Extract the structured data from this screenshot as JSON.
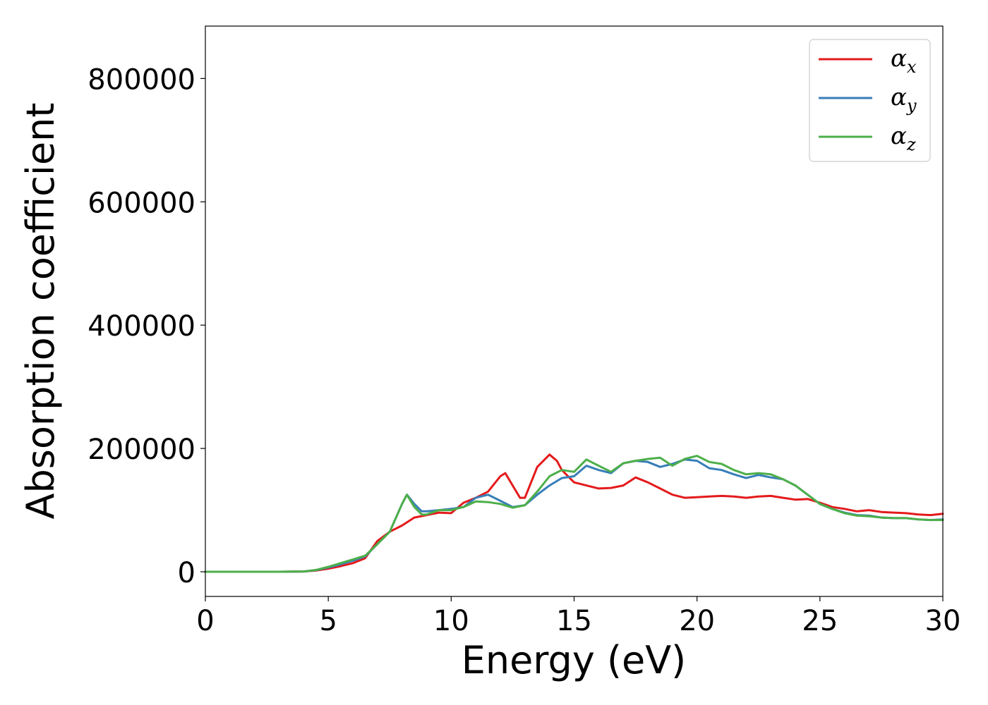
{
  "chart_data": {
    "type": "line",
    "title": "",
    "xlabel": "Energy (eV)",
    "ylabel": "Absorption coefficient",
    "xlim": [
      0,
      30
    ],
    "ylim": [
      -40000,
      885000
    ],
    "xticks": [
      0,
      5,
      10,
      15,
      20,
      25,
      30
    ],
    "xtick_labels": [
      "0",
      "5",
      "10",
      "15",
      "20",
      "25",
      "30"
    ],
    "yticks": [
      0,
      200000,
      400000,
      600000,
      800000
    ],
    "ytick_labels": [
      "0",
      "200000",
      "400000",
      "600000",
      "800000"
    ],
    "grid": false,
    "legend_position": "top-right",
    "legend": [
      {
        "base": "α",
        "sub": "x",
        "color": "#e41a1c"
      },
      {
        "base": "α",
        "sub": "y",
        "color": "#377eb8"
      },
      {
        "base": "α",
        "sub": "z",
        "color": "#4daf4a"
      }
    ],
    "series": [
      {
        "name": "αx",
        "color": "#e41a1c",
        "x": [
          0,
          1,
          2,
          3,
          4,
          4.5,
          5,
          5.5,
          6,
          6.5,
          7,
          7.5,
          8,
          8.5,
          9,
          9.5,
          10,
          10.5,
          11,
          11.5,
          12,
          12.2,
          12.5,
          12.8,
          13,
          13.5,
          14,
          14.3,
          14.5,
          15,
          15.5,
          16,
          16.5,
          17,
          17.5,
          18,
          18.5,
          19,
          19.5,
          20,
          20.5,
          21,
          21.5,
          22,
          22.5,
          23,
          23.5,
          24,
          24.5,
          25,
          25.5,
          26,
          26.5,
          27,
          27.5,
          28,
          28.5,
          29,
          29.5,
          30
        ],
        "y": [
          0,
          0,
          0,
          0,
          500,
          2000,
          5000,
          9000,
          14000,
          22000,
          50000,
          65000,
          75000,
          88000,
          92000,
          96000,
          95000,
          112000,
          120000,
          130000,
          155000,
          160000,
          140000,
          120000,
          120000,
          170000,
          190000,
          180000,
          165000,
          145000,
          140000,
          135000,
          136000,
          140000,
          153000,
          145000,
          135000,
          125000,
          120000,
          121000,
          122000,
          123000,
          122000,
          120000,
          122000,
          123000,
          120000,
          117000,
          118000,
          112000,
          105000,
          102000,
          98000,
          100000,
          97000,
          96000,
          95000,
          93000,
          92000,
          94000
        ]
      },
      {
        "name": "αy",
        "color": "#377eb8",
        "x": [
          0,
          1,
          2,
          3,
          4,
          4.5,
          5,
          5.5,
          6,
          6.5,
          7,
          7.5,
          8,
          8.2,
          8.5,
          8.8,
          9,
          9.5,
          10,
          10.5,
          11,
          11.5,
          12,
          12.5,
          13,
          13.5,
          14,
          14.5,
          15,
          15.5,
          16,
          16.5,
          17,
          17.5,
          18,
          18.5,
          19,
          19.5,
          20,
          20.5,
          21,
          21.5,
          22,
          22.5,
          23,
          23.5,
          24,
          24.5,
          25,
          25.5,
          26,
          26.5,
          27,
          27.5,
          28,
          28.5,
          29,
          29.5,
          30
        ],
        "y": [
          0,
          0,
          0,
          0,
          500,
          2500,
          7000,
          12000,
          18000,
          25000,
          45000,
          65000,
          110000,
          125000,
          110000,
          98000,
          98000,
          100000,
          102000,
          105000,
          120000,
          125000,
          115000,
          105000,
          108000,
          125000,
          140000,
          152000,
          155000,
          172000,
          165000,
          160000,
          176000,
          180000,
          178000,
          170000,
          175000,
          182000,
          180000,
          168000,
          165000,
          158000,
          152000,
          157000,
          153000,
          150000,
          140000,
          125000,
          110000,
          102000,
          96000,
          92000,
          91000,
          88000,
          87000,
          87000,
          85000,
          84000,
          85000
        ]
      },
      {
        "name": "αz",
        "color": "#4daf4a",
        "x": [
          0,
          1,
          2,
          3,
          4,
          4.5,
          5,
          5.5,
          6,
          6.5,
          7,
          7.5,
          8,
          8.2,
          8.5,
          8.8,
          9,
          9.5,
          10,
          10.5,
          11,
          11.5,
          12,
          12.5,
          13,
          13.5,
          14,
          14.5,
          15,
          15.5,
          16,
          16.5,
          17,
          17.5,
          18,
          18.5,
          19,
          19.5,
          20,
          20.5,
          21,
          21.5,
          22,
          22.5,
          23,
          23.5,
          24,
          24.5,
          25,
          25.5,
          26,
          26.5,
          27,
          27.5,
          28,
          28.5,
          29,
          29.5,
          30
        ],
        "y": [
          0,
          0,
          0,
          0,
          500,
          3000,
          8000,
          14000,
          20000,
          26000,
          45000,
          65000,
          110000,
          125000,
          105000,
          93000,
          93000,
          100000,
          100000,
          105000,
          114000,
          113000,
          110000,
          104000,
          108000,
          130000,
          155000,
          165000,
          162000,
          182000,
          172000,
          162000,
          176000,
          180000,
          183000,
          185000,
          172000,
          183000,
          188000,
          178000,
          175000,
          165000,
          158000,
          160000,
          158000,
          150000,
          140000,
          125000,
          110000,
          102000,
          95000,
          91000,
          90000,
          88000,
          87000,
          87000,
          85000,
          84000,
          84000
        ]
      }
    ]
  }
}
